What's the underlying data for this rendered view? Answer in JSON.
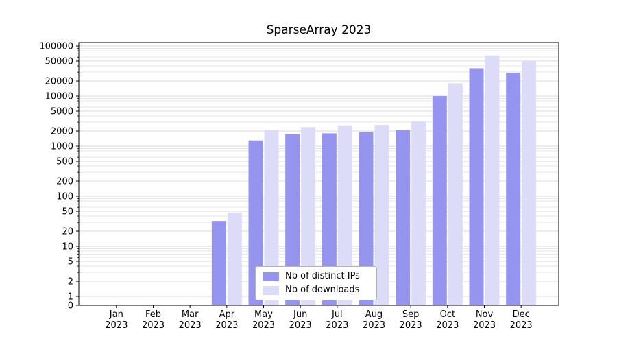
{
  "chart_data": {
    "type": "bar",
    "title": "SparseArray 2023",
    "yscale": "symlog",
    "ylim": [
      0,
      100000
    ],
    "grid": true,
    "legend_position": "lower center",
    "categories": [
      "Jan 2023",
      "Feb 2023",
      "Mar 2023",
      "Apr 2023",
      "May 2023",
      "Jun 2023",
      "Jul 2023",
      "Aug 2023",
      "Sep 2023",
      "Oct 2023",
      "Nov 2023",
      "Dec 2023"
    ],
    "y_ticks": [
      100000,
      50000,
      20000,
      10000,
      5000,
      2000,
      1000,
      500,
      200,
      100,
      50,
      20,
      10,
      5,
      2,
      1,
      0
    ],
    "series": [
      {
        "name": "Nb of distinct IPs",
        "color": "#9595ef",
        "values": [
          0,
          0,
          0,
          32,
          1300,
          1750,
          1800,
          1900,
          2100,
          10000,
          36000,
          29000
        ]
      },
      {
        "name": "Nb of downloads",
        "color": "#dcdcf9",
        "values": [
          0,
          0,
          0,
          47,
          2100,
          2400,
          2600,
          2650,
          3100,
          18000,
          65000,
          51000
        ]
      }
    ]
  }
}
